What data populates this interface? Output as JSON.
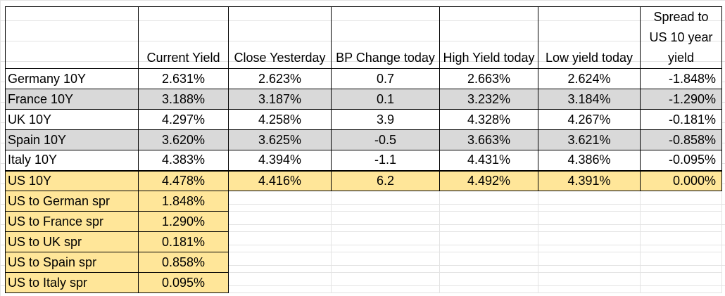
{
  "headers": [
    "",
    "Current Yield",
    "Close Yesterday",
    "BP Change today",
    "High Yield today",
    "Low yield today",
    "Spread to US 10 year yield"
  ],
  "rows": [
    {
      "name": "Germany 10Y",
      "current": "2.631%",
      "close": "2.623%",
      "bp": "0.7",
      "high": "2.663%",
      "low": "2.624%",
      "spread": "-1.848%"
    },
    {
      "name": "France 10Y",
      "current": "3.188%",
      "close": "3.187%",
      "bp": "0.1",
      "high": "3.232%",
      "low": "3.184%",
      "spread": "-1.290%"
    },
    {
      "name": "UK 10Y",
      "current": "4.297%",
      "close": "4.258%",
      "bp": "3.9",
      "high": "4.328%",
      "low": "4.267%",
      "spread": "-0.181%"
    },
    {
      "name": "Spain 10Y",
      "current": "3.620%",
      "close": "3.625%",
      "bp": "-0.5",
      "high": "3.663%",
      "low": "3.621%",
      "spread": "-0.858%"
    },
    {
      "name": "Italy 10Y",
      "current": "4.383%",
      "close": "4.394%",
      "bp": "-1.1",
      "high": "4.431%",
      "low": "4.386%",
      "spread": "-0.095%"
    },
    {
      "name": "US 10Y",
      "current": "4.478%",
      "close": "4.416%",
      "bp": "6.2",
      "high": "4.492%",
      "low": "4.391%",
      "spread": "0.000%"
    }
  ],
  "spreads": [
    {
      "name": "US to German spr",
      "value": "1.848%"
    },
    {
      "name": "US to France spr",
      "value": "1.290%"
    },
    {
      "name": "US to UK spr",
      "value": "0.181%"
    },
    {
      "name": "US to Spain spr",
      "value": "0.858%"
    },
    {
      "name": "US to Italy spr",
      "value": "0.095%"
    }
  ],
  "colors": {
    "highlight": "#ffe699",
    "alt_row": "#d9d9d9",
    "border": "#000000",
    "gridline": "#e3e3e3"
  }
}
